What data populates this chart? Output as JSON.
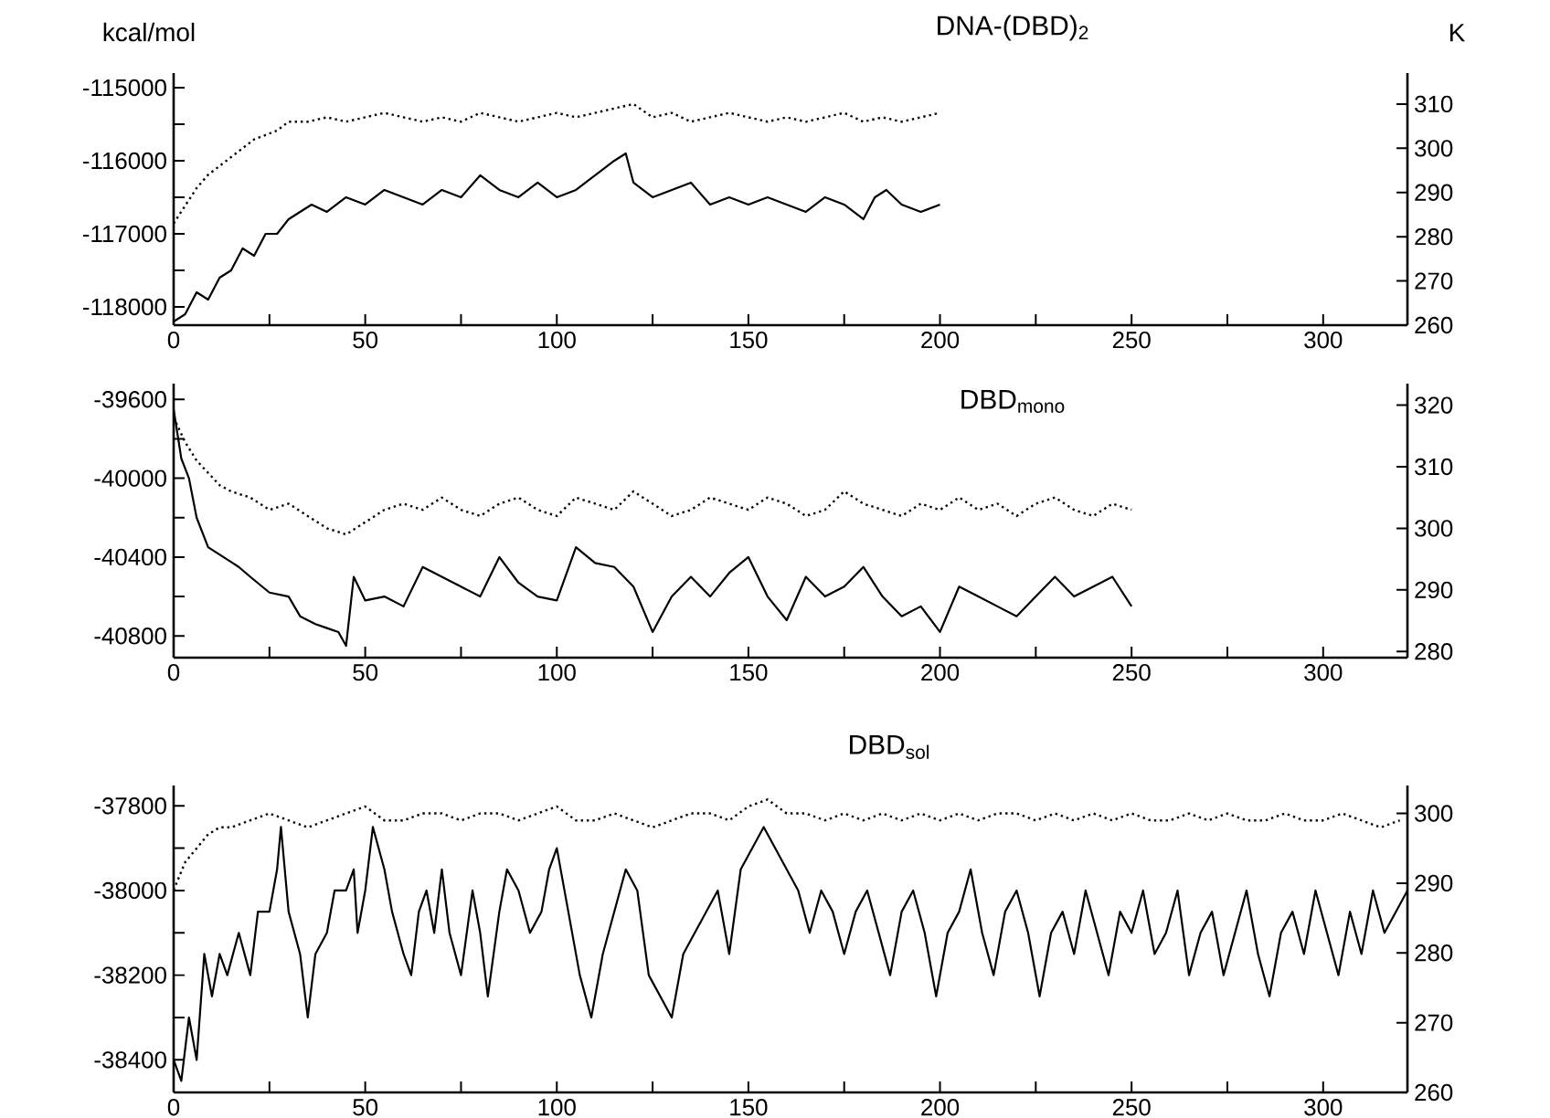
{
  "chart_data": [
    {
      "type": "line",
      "title": "DNA-(DBD)$_{2}$",
      "ylabel": "kcal/mol",
      "y2label": "K",
      "xlim": [
        0,
        322
      ],
      "xticks": [
        0,
        {
          "value": 25,
          "label": null
        },
        50,
        {
          "value": 75,
          "label": null
        },
        100,
        {
          "value": 125,
          "label": null
        },
        150,
        {
          "value": 175,
          "label": null
        },
        200,
        {
          "value": 225,
          "label": null
        },
        250,
        {
          "value": 275,
          "label": null
        },
        300
      ],
      "ylim": [
        -118250,
        -114800
      ],
      "yticks": [
        -118000,
        {
          "value": -117500,
          "label": null
        },
        -117000,
        {
          "value": -116500,
          "label": null
        },
        -116000,
        {
          "value": -115500,
          "label": null
        },
        -115000
      ],
      "y2lim": [
        260,
        317
      ],
      "y2ticks": [
        260,
        270,
        280,
        290,
        300,
        310
      ],
      "series": [
        {
          "color": "#000000",
          "line_style": "solid",
          "x": [
            0,
            3,
            6,
            9,
            12,
            15,
            18,
            21,
            24,
            27,
            30,
            33,
            36,
            40,
            45,
            50,
            55,
            60,
            65,
            70,
            75,
            80,
            85,
            90,
            95,
            100,
            105,
            110,
            115,
            118,
            120,
            125,
            130,
            135,
            140,
            145,
            150,
            155,
            160,
            165,
            170,
            175,
            180,
            183,
            186,
            190,
            195,
            200
          ],
          "values": [
            -118200,
            -118100,
            -117800,
            -117900,
            -117600,
            -117500,
            -117200,
            -117300,
            -117000,
            -117000,
            -116800,
            -116700,
            -116600,
            -116700,
            -116500,
            -116600,
            -116400,
            -116500,
            -116600,
            -116400,
            -116500,
            -116200,
            -116400,
            -116500,
            -116300,
            -116500,
            -116400,
            -116200,
            -116000,
            -115900,
            -116300,
            -116500,
            -116400,
            -116300,
            -116600,
            -116500,
            -116600,
            -116500,
            -116600,
            -116700,
            -116500,
            -116600,
            -116800,
            -116500,
            -116400,
            -116600,
            -116700,
            -116600
          ]
        },
        {
          "color": "#000000",
          "line_style": "dotted",
          "axis": "y2",
          "x": [
            0,
            3,
            6,
            9,
            12,
            15,
            18,
            21,
            24,
            27,
            30,
            35,
            40,
            45,
            50,
            55,
            60,
            65,
            70,
            75,
            80,
            85,
            90,
            95,
            100,
            105,
            110,
            115,
            120,
            125,
            130,
            135,
            140,
            145,
            150,
            155,
            160,
            165,
            170,
            175,
            180,
            185,
            190,
            195,
            200
          ],
          "values": [
            283,
            287,
            291,
            294,
            296,
            298,
            300,
            302,
            303,
            304,
            306,
            306,
            307,
            306,
            307,
            308,
            307,
            306,
            307,
            306,
            308,
            307,
            306,
            307,
            308,
            307,
            308,
            309,
            310,
            307,
            308,
            306,
            307,
            308,
            307,
            306,
            307,
            306,
            307,
            308,
            306,
            307,
            306,
            307,
            308
          ]
        }
      ]
    },
    {
      "type": "line",
      "title": "DBD$_{mono}$",
      "xlim": [
        0,
        322
      ],
      "xticks": [
        0,
        {
          "value": 25,
          "label": null
        },
        50,
        {
          "value": 75,
          "label": null
        },
        100,
        {
          "value": 125,
          "label": null
        },
        150,
        {
          "value": 175,
          "label": null
        },
        200,
        {
          "value": 225,
          "label": null
        },
        250,
        {
          "value": 275,
          "label": null
        },
        300
      ],
      "ylim": [
        -40910,
        -39520
      ],
      "yticks": [
        -40800,
        {
          "value": -40600,
          "label": null
        },
        -40400,
        {
          "value": -40200,
          "label": null
        },
        -40000,
        {
          "value": -39800,
          "label": null
        },
        -39600
      ],
      "y2lim": [
        279,
        323.5
      ],
      "y2ticks": [
        280,
        290,
        300,
        310,
        320
      ],
      "series": [
        {
          "color": "#000000",
          "line_style": "solid",
          "x": [
            0,
            2,
            4,
            6,
            9,
            13,
            17,
            20,
            25,
            30,
            33,
            37,
            40,
            43,
            45,
            47,
            50,
            55,
            60,
            65,
            70,
            75,
            80,
            85,
            90,
            95,
            100,
            105,
            110,
            115,
            120,
            125,
            130,
            135,
            140,
            145,
            150,
            155,
            160,
            165,
            170,
            175,
            180,
            185,
            190,
            195,
            200,
            205,
            210,
            215,
            220,
            225,
            230,
            235,
            240,
            245,
            250
          ],
          "values": [
            -39650,
            -39900,
            -40000,
            -40200,
            -40350,
            -40400,
            -40450,
            -40500,
            -40580,
            -40600,
            -40700,
            -40740,
            -40760,
            -40780,
            -40850,
            -40500,
            -40620,
            -40600,
            -40650,
            -40450,
            -40500,
            -40550,
            -40600,
            -40400,
            -40530,
            -40600,
            -40620,
            -40350,
            -40430,
            -40450,
            -40550,
            -40780,
            -40600,
            -40500,
            -40600,
            -40480,
            -40400,
            -40600,
            -40720,
            -40500,
            -40600,
            -40550,
            -40450,
            -40600,
            -40700,
            -40650,
            -40780,
            -40550,
            -40600,
            -40650,
            -40700,
            -40600,
            -40500,
            -40600,
            -40550,
            -40500,
            -40650
          ]
        },
        {
          "color": "#000000",
          "line_style": "dotted",
          "axis": "y2",
          "x": [
            0,
            3,
            6,
            9,
            12,
            15,
            20,
            25,
            30,
            35,
            40,
            45,
            50,
            55,
            60,
            65,
            70,
            75,
            80,
            85,
            90,
            95,
            100,
            105,
            110,
            115,
            120,
            125,
            130,
            135,
            140,
            145,
            150,
            155,
            160,
            165,
            170,
            175,
            180,
            185,
            190,
            195,
            200,
            205,
            210,
            215,
            220,
            225,
            230,
            235,
            240,
            245,
            250
          ],
          "values": [
            318,
            314,
            311,
            309,
            307,
            306,
            305,
            303,
            304,
            302,
            300,
            299,
            301,
            303,
            304,
            303,
            305,
            303,
            302,
            304,
            305,
            303,
            302,
            305,
            304,
            303,
            306,
            304,
            302,
            303,
            305,
            304,
            303,
            305,
            304,
            302,
            303,
            306,
            304,
            303,
            302,
            304,
            303,
            305,
            303,
            304,
            302,
            304,
            305,
            303,
            302,
            304,
            303
          ]
        }
      ]
    },
    {
      "type": "line",
      "title": "DBD$_{sol}$",
      "xlim": [
        0,
        322
      ],
      "xticks": [
        0,
        {
          "value": 25,
          "label": null
        },
        50,
        {
          "value": 75,
          "label": null
        },
        100,
        {
          "value": 125,
          "label": null
        },
        150,
        {
          "value": 175,
          "label": null
        },
        200,
        {
          "value": 225,
          "label": null
        },
        250,
        {
          "value": 275,
          "label": null
        },
        300
      ],
      "ylim": [
        -38477,
        -37752
      ],
      "yticks": [
        -38400,
        {
          "value": -38300,
          "label": null
        },
        -38200,
        {
          "value": -38100,
          "label": null
        },
        -38000,
        {
          "value": -37900,
          "label": null
        },
        -37800
      ],
      "y2lim": [
        260,
        304
      ],
      "y2ticks": [
        260,
        270,
        280,
        290,
        300
      ],
      "series": [
        {
          "color": "#000000",
          "line_style": "solid",
          "x": [
            0,
            2,
            4,
            6,
            8,
            10,
            12,
            14,
            17,
            20,
            22,
            25,
            27,
            28,
            30,
            33,
            35,
            37,
            40,
            42,
            45,
            47,
            48,
            50,
            52,
            55,
            57,
            60,
            62,
            64,
            66,
            68,
            70,
            72,
            75,
            78,
            80,
            82,
            85,
            87,
            90,
            93,
            96,
            98,
            100,
            103,
            106,
            109,
            112,
            115,
            118,
            121,
            124,
            127,
            130,
            133,
            136,
            139,
            142,
            145,
            148,
            151,
            154,
            157,
            160,
            163,
            166,
            169,
            172,
            175,
            178,
            181,
            184,
            187,
            190,
            193,
            196,
            199,
            202,
            205,
            208,
            211,
            214,
            217,
            220,
            223,
            226,
            229,
            232,
            235,
            238,
            241,
            244,
            247,
            250,
            253,
            256,
            259,
            262,
            265,
            268,
            271,
            274,
            277,
            280,
            283,
            286,
            289,
            292,
            295,
            298,
            301,
            304,
            307,
            310,
            313,
            316,
            319,
            322
          ],
          "values": [
            -38400,
            -38450,
            -38300,
            -38400,
            -38150,
            -38250,
            -38150,
            -38200,
            -38100,
            -38200,
            -38050,
            -38050,
            -37950,
            -37850,
            -38050,
            -38150,
            -38300,
            -38150,
            -38100,
            -38000,
            -38000,
            -37950,
            -38100,
            -38000,
            -37850,
            -37950,
            -38050,
            -38150,
            -38200,
            -38050,
            -38000,
            -38100,
            -37950,
            -38100,
            -38200,
            -38000,
            -38100,
            -38250,
            -38050,
            -37950,
            -38000,
            -38100,
            -38050,
            -37950,
            -37900,
            -38050,
            -38200,
            -38300,
            -38150,
            -38050,
            -37950,
            -38000,
            -38200,
            -38250,
            -38300,
            -38150,
            -38100,
            -38050,
            -38000,
            -38150,
            -37950,
            -37900,
            -37850,
            -37900,
            -37950,
            -38000,
            -38100,
            -38000,
            -38050,
            -38150,
            -38050,
            -38000,
            -38100,
            -38200,
            -38050,
            -38000,
            -38100,
            -38250,
            -38100,
            -38050,
            -37950,
            -38100,
            -38200,
            -38050,
            -38000,
            -38100,
            -38250,
            -38100,
            -38050,
            -38150,
            -38000,
            -38100,
            -38200,
            -38050,
            -38100,
            -38000,
            -38150,
            -38100,
            -38000,
            -38200,
            -38100,
            -38050,
            -38200,
            -38100,
            -38000,
            -38150,
            -38250,
            -38100,
            -38050,
            -38150,
            -38000,
            -38100,
            -38200,
            -38050,
            -38150,
            -38000,
            -38100,
            -38050,
            -38000
          ]
        },
        {
          "color": "#000000",
          "line_style": "dotted",
          "axis": "y2",
          "x": [
            0,
            3,
            6,
            9,
            12,
            15,
            20,
            25,
            30,
            35,
            40,
            45,
            50,
            55,
            60,
            65,
            70,
            75,
            80,
            85,
            90,
            95,
            100,
            105,
            110,
            115,
            120,
            125,
            130,
            135,
            140,
            145,
            150,
            155,
            160,
            165,
            170,
            175,
            180,
            185,
            190,
            195,
            200,
            205,
            210,
            215,
            220,
            225,
            230,
            235,
            240,
            245,
            250,
            255,
            260,
            265,
            270,
            275,
            280,
            285,
            290,
            295,
            300,
            305,
            310,
            315,
            320
          ],
          "values": [
            289,
            293,
            295,
            297,
            298,
            298,
            299,
            300,
            299,
            298,
            299,
            300,
            301,
            299,
            299,
            300,
            300,
            299,
            300,
            300,
            299,
            300,
            301,
            299,
            299,
            300,
            299,
            298,
            299,
            300,
            300,
            299,
            301,
            302,
            300,
            300,
            299,
            300,
            299,
            300,
            299,
            300,
            299,
            300,
            299,
            300,
            300,
            299,
            300,
            299,
            300,
            299,
            300,
            299,
            299,
            300,
            299,
            300,
            299,
            299,
            300,
            299,
            299,
            300,
            299,
            298,
            299
          ]
        }
      ]
    }
  ]
}
